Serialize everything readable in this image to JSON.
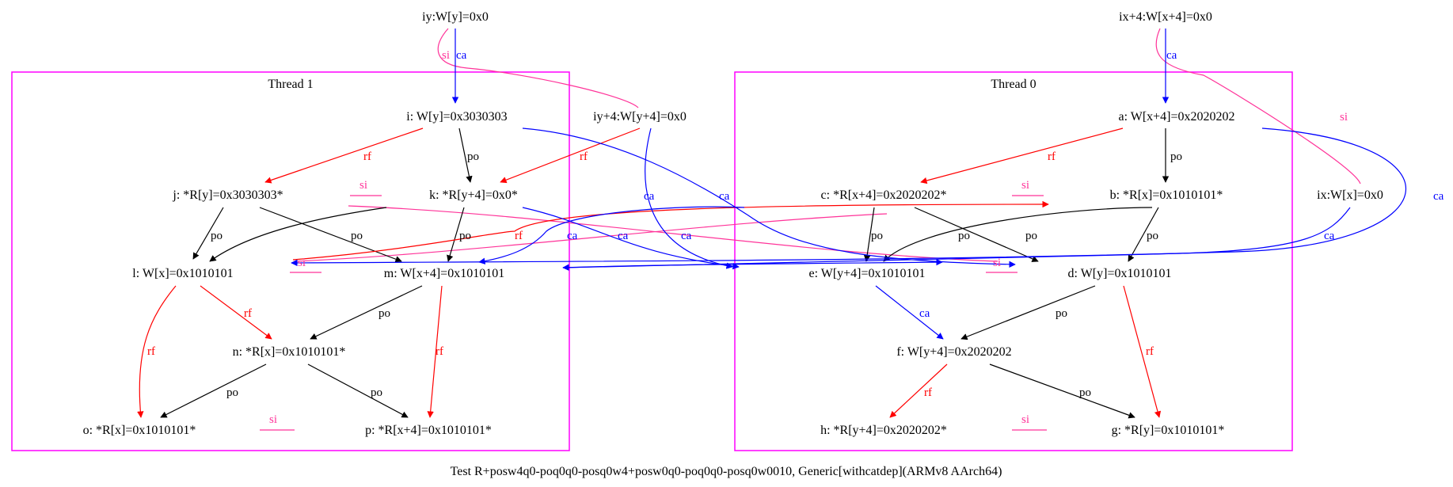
{
  "caption": "Test R+posw4q0-poq0q0-posq0w4+posw0q0-poq0q0-posq0w0010, Generic[withcatdep](ARMv8 AArch64)",
  "clusters": {
    "thread1": "Thread 1",
    "thread0": "Thread 0"
  },
  "colors": {
    "po": "#000000",
    "rf": "#ff0000",
    "ca": "#0000ff",
    "si": "#ff3399",
    "cluster": "#ff00ff"
  },
  "nodes": {
    "iy": "iy:W[y]=0x0",
    "ix4": "ix+4:W[x+4]=0x0",
    "iy4": "iy+4:W[y+4]=0x0",
    "ix": "ix:W[x]=0x0",
    "i": "i: W[y]=0x3030303",
    "j": "j: *R[y]=0x3030303*",
    "k": "k: *R[y+4]=0x0*",
    "l": "l: W[x]=0x1010101",
    "m": "m: W[x+4]=0x1010101",
    "n": "n: *R[x]=0x1010101*",
    "o": "o: *R[x]=0x1010101*",
    "p": "p: *R[x+4]=0x1010101*",
    "a": "a: W[x+4]=0x2020202",
    "b": "b: *R[x]=0x1010101*",
    "c": "c: *R[x+4]=0x2020202*",
    "d": "d: W[y]=0x1010101",
    "e": "e: W[y+4]=0x1010101",
    "f": "f: W[y+4]=0x2020202",
    "g": "g: *R[y]=0x1010101*",
    "h": "h: *R[y+4]=0x2020202*"
  },
  "edge_labels": {
    "po": "po",
    "rf": "rf",
    "ca": "ca",
    "si": "si"
  }
}
